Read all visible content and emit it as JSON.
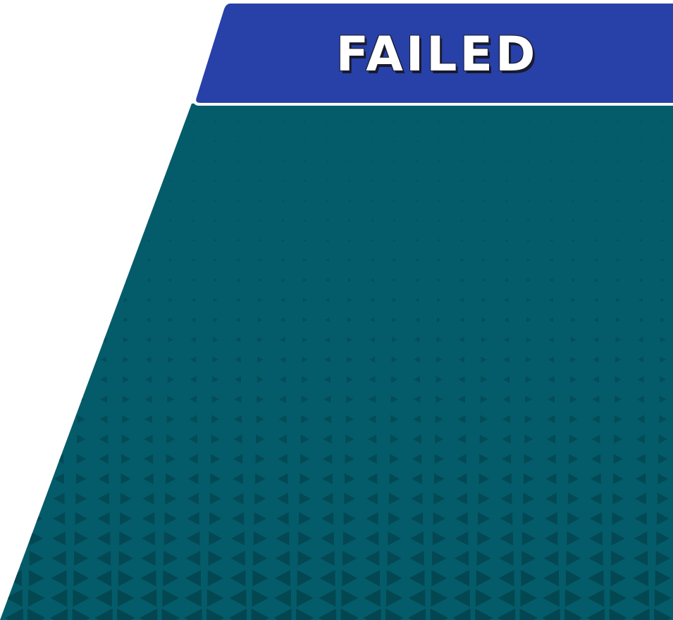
{
  "result_banner": {
    "label": "FAILED"
  },
  "colors": {
    "banner_fill": "#2741a8",
    "banner_edge": "#ffffff",
    "panel_fill": "#045c6a",
    "pattern_fill": "#034651",
    "background": "#ffffff"
  },
  "icons": {
    "pattern": "triangle-grid-pattern"
  }
}
